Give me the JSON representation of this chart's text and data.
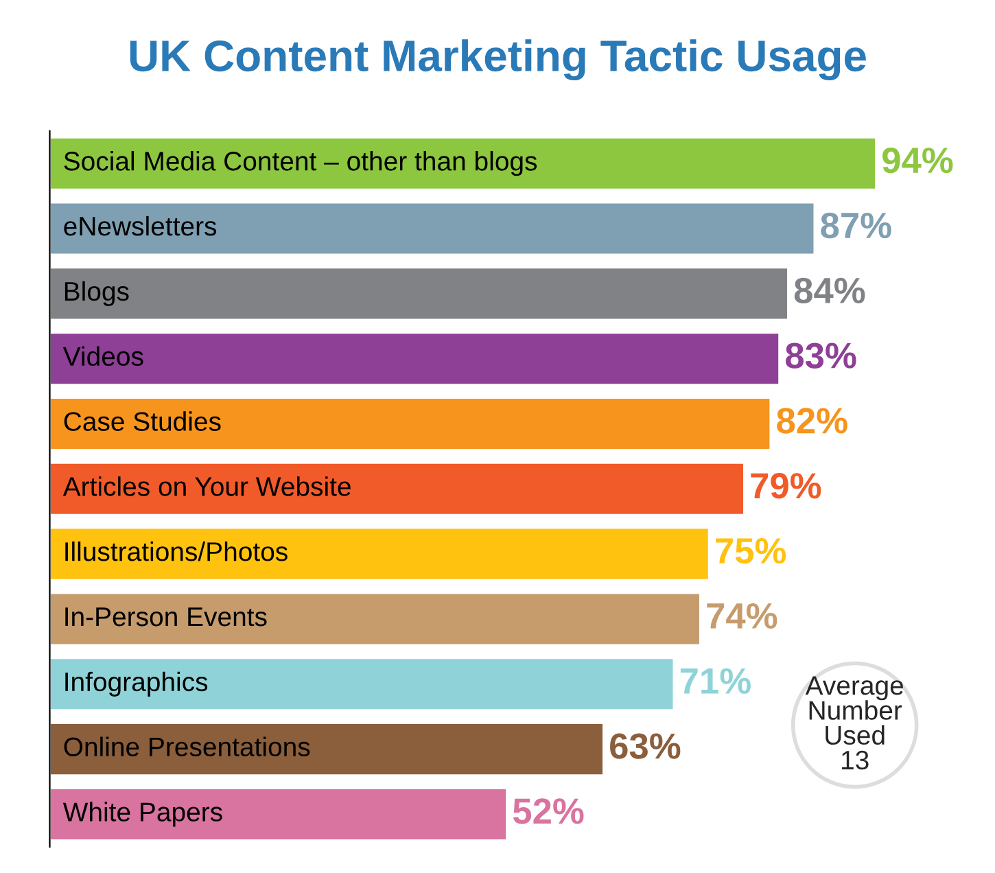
{
  "chart_data": {
    "type": "bar",
    "orientation": "horizontal",
    "title": "UK Content Marketing Tactic Usage",
    "categories": [
      "Social Media Content – other than blogs",
      "eNewsletters",
      "Blogs",
      "Videos",
      "Case Studies",
      "Articles on Your Website",
      "Illustrations/Photos",
      "In-Person Events",
      "Infographics",
      "Online Presentations",
      "White Papers"
    ],
    "values": [
      94,
      87,
      84,
      83,
      82,
      79,
      75,
      74,
      71,
      63,
      52
    ],
    "colors": [
      "#8dc63f",
      "#7f9fb2",
      "#808285",
      "#8e3f96",
      "#f7941d",
      "#f15a29",
      "#ffc20e",
      "#c69c6d",
      "#8fd3d8",
      "#8b5e3c",
      "#d9739f"
    ],
    "value_labels": [
      "94%",
      "87%",
      "84%",
      "83%",
      "82%",
      "79%",
      "75%",
      "74%",
      "71%",
      "63%",
      "52%"
    ],
    "annotations": [
      "Average\nNumber\nUsed\n13"
    ],
    "legend": false
  }
}
